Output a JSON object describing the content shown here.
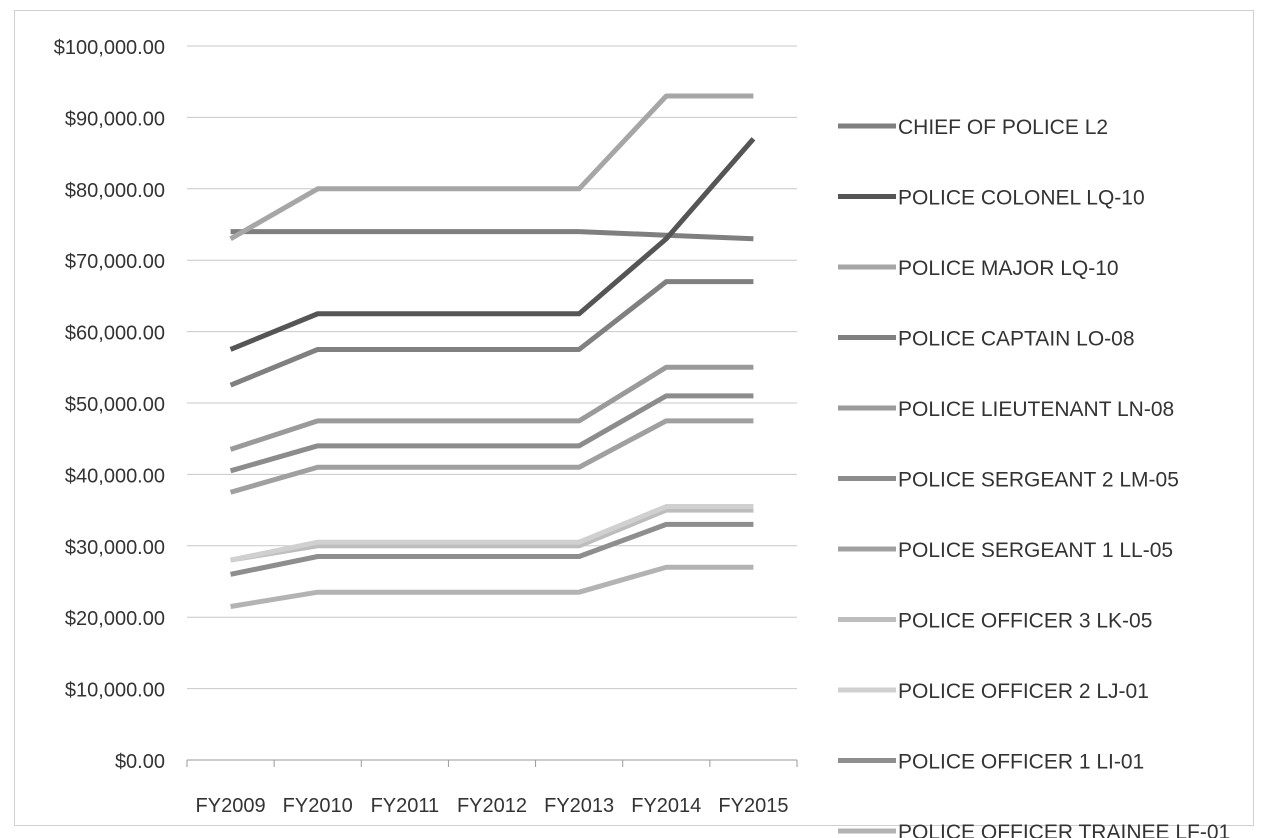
{
  "chart_data": {
    "type": "line",
    "title": "",
    "xlabel": "",
    "ylabel": "",
    "ylim": [
      0,
      100000
    ],
    "y_ticks": [
      "$0.00",
      "$10,000.00",
      "$20,000.00",
      "$30,000.00",
      "$40,000.00",
      "$50,000.00",
      "$60,000.00",
      "$70,000.00",
      "$80,000.00",
      "$90,000.00",
      "$100,000.00"
    ],
    "grid": true,
    "legend_position": "right",
    "categories": [
      "FY2009",
      "FY2010",
      "FY2011",
      "FY2012",
      "FY2013",
      "FY2014",
      "FY2015"
    ],
    "series": [
      {
        "name": "CHIEF OF POLICE L2",
        "color": "#7f7f7f",
        "values": [
          74000,
          74000,
          74000,
          74000,
          74000,
          73500,
          73000
        ]
      },
      {
        "name": "POLICE COLONEL LQ-10",
        "color": "#555555",
        "values": [
          57500,
          62500,
          62500,
          62500,
          62500,
          73000,
          87000
        ]
      },
      {
        "name": "POLICE MAJOR LQ-10",
        "color": "#a6a6a6",
        "values": [
          73000,
          80000,
          80000,
          80000,
          80000,
          93000,
          93000
        ]
      },
      {
        "name": "POLICE CAPTAIN LO-08",
        "color": "#808080",
        "values": [
          52500,
          57500,
          57500,
          57500,
          57500,
          67000,
          67000
        ]
      },
      {
        "name": "POLICE LIEUTENANT LN-08",
        "color": "#9a9a9a",
        "values": [
          43500,
          47500,
          47500,
          47500,
          47500,
          55000,
          55000
        ]
      },
      {
        "name": "POLICE SERGEANT 2 LM-05",
        "color": "#8c8c8c",
        "values": [
          40500,
          44000,
          44000,
          44000,
          44000,
          51000,
          51000
        ]
      },
      {
        "name": "POLICE SERGEANT 1 LL-05",
        "color": "#a0a0a0",
        "values": [
          37500,
          41000,
          41000,
          41000,
          41000,
          47500,
          47500
        ]
      },
      {
        "name": "POLICE OFFICER 3 LK-05",
        "color": "#bdbdbd",
        "values": [
          28000,
          30000,
          30000,
          30000,
          30000,
          35000,
          35000
        ]
      },
      {
        "name": "POLICE OFFICER 2 LJ-01",
        "color": "#d0d0d0",
        "values": [
          28000,
          30500,
          30500,
          30500,
          30500,
          35500,
          35500
        ]
      },
      {
        "name": "POLICE OFFICER 1 LI-01",
        "color": "#8e8e8e",
        "values": [
          26000,
          28500,
          28500,
          28500,
          28500,
          33000,
          33000
        ]
      },
      {
        "name": "POLICE OFFICER TRAINEE LF-01",
        "color": "#b3b3b3",
        "values": [
          21500,
          23500,
          23500,
          23500,
          23500,
          27000,
          27000
        ]
      }
    ]
  }
}
